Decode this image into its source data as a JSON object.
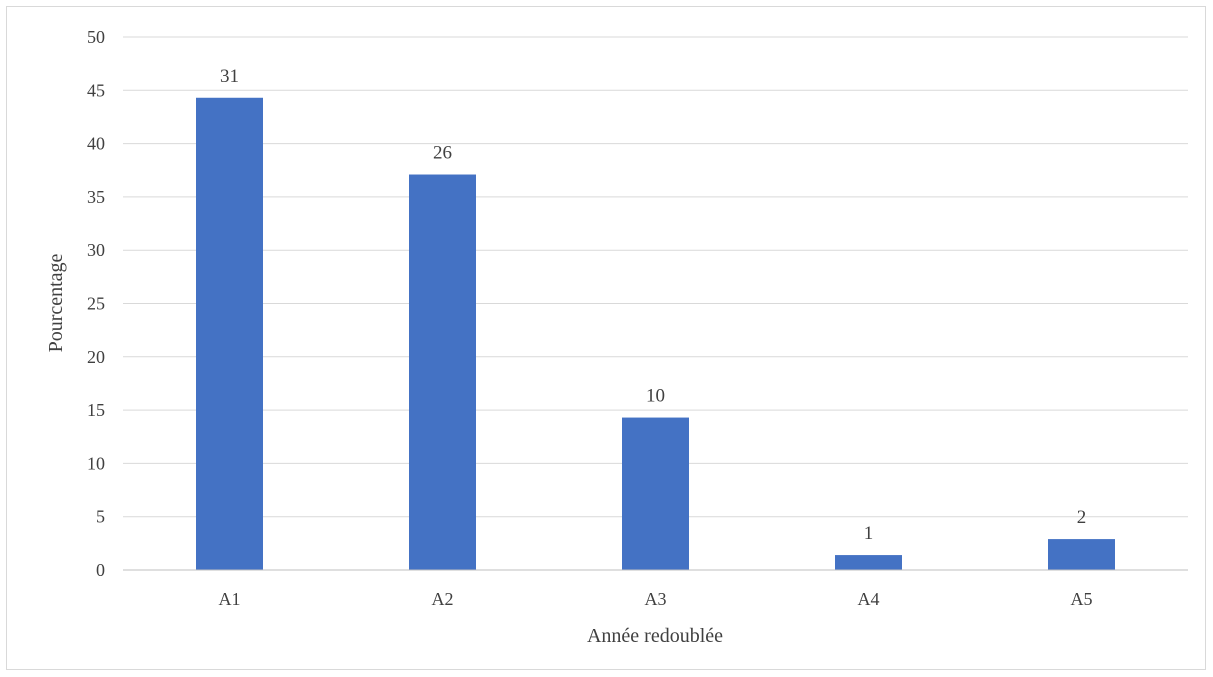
{
  "chart_data": {
    "type": "bar",
    "categories": [
      "A1",
      "A2",
      "A3",
      "A4",
      "A5"
    ],
    "values": [
      44.3,
      37.1,
      14.3,
      1.4,
      2.9
    ],
    "data_labels": [
      "31",
      "26",
      "10",
      "1",
      "2"
    ],
    "title": "",
    "xlabel": "Année redoublée",
    "ylabel": "Pourcentage",
    "ylim": [
      0,
      50
    ],
    "yticks": [
      0,
      5,
      10,
      15,
      20,
      25,
      30,
      35,
      40,
      45,
      50
    ],
    "grid": true,
    "legend": "none",
    "bar_color": "#4472c4",
    "grid_color": "#d9d9d9"
  }
}
